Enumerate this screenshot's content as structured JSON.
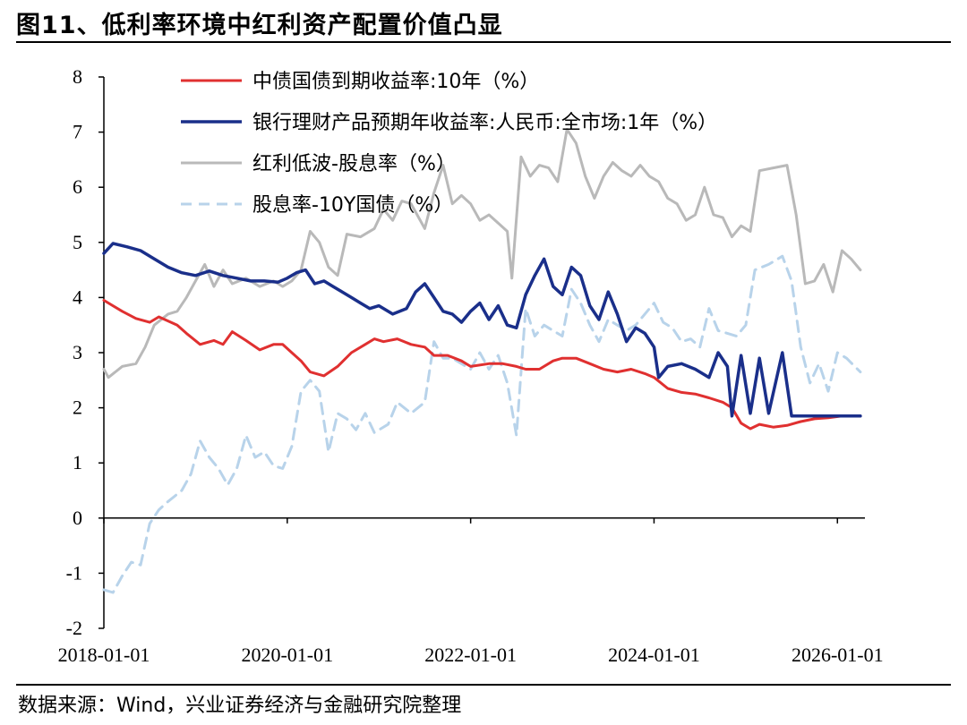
{
  "page": {
    "title": "图11、低利率环境中红利资产配置价值凸显",
    "source": "数据来源：Wind，兴业证券经济与金融研究院整理"
  },
  "chart_data": {
    "type": "line",
    "title": "图11、低利率环境中红利资产配置价值凸显",
    "xlabel": "",
    "ylabel": "",
    "xlim": [
      2018.0,
      2026.3
    ],
    "ylim": [
      -2,
      8
    ],
    "y_ticks": [
      "-2",
      "-1",
      "0",
      "1",
      "2",
      "3",
      "4",
      "5",
      "6",
      "7",
      "8"
    ],
    "x_ticks": [
      {
        "t": 2018.0,
        "label": "2018-01-01"
      },
      {
        "t": 2020.0,
        "label": "2020-01-01"
      },
      {
        "t": 2022.0,
        "label": "2022-01-01"
      },
      {
        "t": 2024.0,
        "label": "2024-01-01"
      },
      {
        "t": 2026.0,
        "label": "2026-01-01"
      }
    ],
    "legend_position": "top-center",
    "series": [
      {
        "name": "中债国债到期收益率:10年（%）",
        "color": "#e03030",
        "style": "solid",
        "width": 3,
        "points": [
          [
            2018.0,
            3.95
          ],
          [
            2018.2,
            3.75
          ],
          [
            2018.35,
            3.62
          ],
          [
            2018.5,
            3.55
          ],
          [
            2018.6,
            3.65
          ],
          [
            2018.8,
            3.5
          ],
          [
            2018.9,
            3.35
          ],
          [
            2019.05,
            3.15
          ],
          [
            2019.2,
            3.22
          ],
          [
            2019.3,
            3.15
          ],
          [
            2019.4,
            3.38
          ],
          [
            2019.55,
            3.22
          ],
          [
            2019.7,
            3.05
          ],
          [
            2019.85,
            3.15
          ],
          [
            2019.95,
            3.15
          ],
          [
            2020.05,
            3.0
          ],
          [
            2020.15,
            2.85
          ],
          [
            2020.25,
            2.65
          ],
          [
            2020.4,
            2.58
          ],
          [
            2020.55,
            2.75
          ],
          [
            2020.7,
            3.0
          ],
          [
            2020.85,
            3.15
          ],
          [
            2020.95,
            3.25
          ],
          [
            2021.05,
            3.2
          ],
          [
            2021.2,
            3.25
          ],
          [
            2021.35,
            3.15
          ],
          [
            2021.5,
            3.1
          ],
          [
            2021.6,
            2.95
          ],
          [
            2021.75,
            2.95
          ],
          [
            2021.9,
            2.85
          ],
          [
            2022.0,
            2.75
          ],
          [
            2022.2,
            2.8
          ],
          [
            2022.35,
            2.8
          ],
          [
            2022.5,
            2.75
          ],
          [
            2022.6,
            2.7
          ],
          [
            2022.75,
            2.7
          ],
          [
            2022.9,
            2.85
          ],
          [
            2023.0,
            2.9
          ],
          [
            2023.15,
            2.9
          ],
          [
            2023.3,
            2.8
          ],
          [
            2023.45,
            2.7
          ],
          [
            2023.6,
            2.65
          ],
          [
            2023.75,
            2.7
          ],
          [
            2023.9,
            2.62
          ],
          [
            2024.0,
            2.55
          ],
          [
            2024.15,
            2.35
          ],
          [
            2024.3,
            2.28
          ],
          [
            2024.45,
            2.25
          ],
          [
            2024.6,
            2.18
          ],
          [
            2024.75,
            2.1
          ],
          [
            2024.85,
            2.0
          ],
          [
            2024.95,
            1.72
          ],
          [
            2025.05,
            1.62
          ],
          [
            2025.15,
            1.7
          ],
          [
            2025.3,
            1.65
          ],
          [
            2025.45,
            1.68
          ],
          [
            2025.6,
            1.75
          ],
          [
            2025.75,
            1.8
          ],
          [
            2025.9,
            1.82
          ],
          [
            2026.05,
            1.85
          ],
          [
            2026.25,
            1.85
          ]
        ]
      },
      {
        "name": "银行理财产品预期年收益率:人民币:全市场:1年（%）",
        "color": "#1a2f8a",
        "style": "solid",
        "width": 3.5,
        "points": [
          [
            2018.0,
            4.8
          ],
          [
            2018.1,
            4.98
          ],
          [
            2018.25,
            4.92
          ],
          [
            2018.4,
            4.85
          ],
          [
            2018.55,
            4.7
          ],
          [
            2018.7,
            4.55
          ],
          [
            2018.85,
            4.45
          ],
          [
            2019.0,
            4.4
          ],
          [
            2019.15,
            4.48
          ],
          [
            2019.3,
            4.4
          ],
          [
            2019.45,
            4.35
          ],
          [
            2019.6,
            4.3
          ],
          [
            2019.75,
            4.3
          ],
          [
            2019.9,
            4.28
          ],
          [
            2020.0,
            4.35
          ],
          [
            2020.1,
            4.45
          ],
          [
            2020.2,
            4.5
          ],
          [
            2020.3,
            4.25
          ],
          [
            2020.4,
            4.3
          ],
          [
            2020.5,
            4.2
          ],
          [
            2020.6,
            4.1
          ],
          [
            2020.7,
            4.0
          ],
          [
            2020.8,
            3.9
          ],
          [
            2020.9,
            3.8
          ],
          [
            2021.0,
            3.85
          ],
          [
            2021.15,
            3.7
          ],
          [
            2021.3,
            3.8
          ],
          [
            2021.4,
            4.1
          ],
          [
            2021.5,
            4.25
          ],
          [
            2021.6,
            4.0
          ],
          [
            2021.7,
            3.75
          ],
          [
            2021.8,
            3.7
          ],
          [
            2021.9,
            3.55
          ],
          [
            2022.0,
            3.75
          ],
          [
            2022.1,
            3.9
          ],
          [
            2022.2,
            3.6
          ],
          [
            2022.3,
            3.85
          ],
          [
            2022.4,
            3.5
          ],
          [
            2022.5,
            3.45
          ],
          [
            2022.6,
            4.05
          ],
          [
            2022.7,
            4.4
          ],
          [
            2022.8,
            4.7
          ],
          [
            2022.9,
            4.2
          ],
          [
            2023.0,
            4.05
          ],
          [
            2023.1,
            4.55
          ],
          [
            2023.2,
            4.4
          ],
          [
            2023.3,
            3.85
          ],
          [
            2023.4,
            3.6
          ],
          [
            2023.5,
            4.1
          ],
          [
            2023.6,
            3.7
          ],
          [
            2023.7,
            3.2
          ],
          [
            2023.8,
            3.45
          ],
          [
            2023.9,
            3.35
          ],
          [
            2024.0,
            3.1
          ],
          [
            2024.05,
            2.55
          ],
          [
            2024.15,
            2.75
          ],
          [
            2024.3,
            2.8
          ],
          [
            2024.45,
            2.7
          ],
          [
            2024.6,
            2.55
          ],
          [
            2024.7,
            3.0
          ],
          [
            2024.8,
            2.75
          ],
          [
            2024.85,
            1.85
          ],
          [
            2024.95,
            2.95
          ],
          [
            2025.05,
            1.9
          ],
          [
            2025.15,
            2.9
          ],
          [
            2025.25,
            1.9
          ],
          [
            2025.4,
            3.0
          ],
          [
            2025.5,
            1.85
          ],
          [
            2025.7,
            1.85
          ],
          [
            2026.25,
            1.85
          ]
        ]
      },
      {
        "name": "红利低波-股息率（%）",
        "color": "#b9b9b9",
        "style": "solid",
        "width": 3,
        "points": [
          [
            2018.0,
            2.7
          ],
          [
            2018.05,
            2.55
          ],
          [
            2018.2,
            2.75
          ],
          [
            2018.35,
            2.8
          ],
          [
            2018.45,
            3.1
          ],
          [
            2018.55,
            3.5
          ],
          [
            2018.7,
            3.7
          ],
          [
            2018.8,
            3.75
          ],
          [
            2018.9,
            4.0
          ],
          [
            2019.0,
            4.3
          ],
          [
            2019.1,
            4.6
          ],
          [
            2019.2,
            4.2
          ],
          [
            2019.3,
            4.5
          ],
          [
            2019.4,
            4.25
          ],
          [
            2019.55,
            4.35
          ],
          [
            2019.7,
            4.2
          ],
          [
            2019.85,
            4.3
          ],
          [
            2019.95,
            4.2
          ],
          [
            2020.05,
            4.3
          ],
          [
            2020.15,
            4.5
          ],
          [
            2020.25,
            5.2
          ],
          [
            2020.35,
            5.0
          ],
          [
            2020.45,
            4.55
          ],
          [
            2020.55,
            4.4
          ],
          [
            2020.65,
            5.15
          ],
          [
            2020.8,
            5.1
          ],
          [
            2020.95,
            5.25
          ],
          [
            2021.05,
            5.6
          ],
          [
            2021.15,
            5.4
          ],
          [
            2021.25,
            5.75
          ],
          [
            2021.35,
            5.7
          ],
          [
            2021.5,
            5.25
          ],
          [
            2021.6,
            5.9
          ],
          [
            2021.7,
            6.4
          ],
          [
            2021.8,
            5.7
          ],
          [
            2021.9,
            5.85
          ],
          [
            2022.0,
            5.7
          ],
          [
            2022.1,
            5.4
          ],
          [
            2022.2,
            5.5
          ],
          [
            2022.3,
            5.35
          ],
          [
            2022.4,
            5.2
          ],
          [
            2022.45,
            4.35
          ],
          [
            2022.55,
            6.55
          ],
          [
            2022.65,
            6.2
          ],
          [
            2022.75,
            6.4
          ],
          [
            2022.85,
            6.35
          ],
          [
            2022.95,
            6.1
          ],
          [
            2023.05,
            7.05
          ],
          [
            2023.15,
            6.8
          ],
          [
            2023.25,
            6.2
          ],
          [
            2023.35,
            5.8
          ],
          [
            2023.45,
            6.2
          ],
          [
            2023.55,
            6.45
          ],
          [
            2023.65,
            6.3
          ],
          [
            2023.75,
            6.2
          ],
          [
            2023.85,
            6.4
          ],
          [
            2023.95,
            6.2
          ],
          [
            2024.05,
            6.1
          ],
          [
            2024.15,
            5.8
          ],
          [
            2024.25,
            5.7
          ],
          [
            2024.35,
            5.4
          ],
          [
            2024.45,
            5.5
          ],
          [
            2024.55,
            6.0
          ],
          [
            2024.65,
            5.5
          ],
          [
            2024.75,
            5.45
          ],
          [
            2024.85,
            5.1
          ],
          [
            2024.95,
            5.3
          ],
          [
            2025.05,
            5.2
          ],
          [
            2025.15,
            6.3
          ],
          [
            2025.3,
            6.35
          ],
          [
            2025.45,
            6.4
          ],
          [
            2025.55,
            5.5
          ],
          [
            2025.65,
            4.25
          ],
          [
            2025.75,
            4.3
          ],
          [
            2025.85,
            4.6
          ],
          [
            2025.95,
            4.1
          ],
          [
            2026.05,
            4.85
          ],
          [
            2026.15,
            4.7
          ],
          [
            2026.25,
            4.5
          ]
        ]
      },
      {
        "name": "股息率-10Y国债（%）",
        "color": "#b8d3ea",
        "style": "dashed",
        "width": 3,
        "points": [
          [
            2018.0,
            -1.3
          ],
          [
            2018.1,
            -1.35
          ],
          [
            2018.2,
            -1.05
          ],
          [
            2018.3,
            -0.8
          ],
          [
            2018.4,
            -0.85
          ],
          [
            2018.5,
            -0.1
          ],
          [
            2018.6,
            0.15
          ],
          [
            2018.7,
            0.3
          ],
          [
            2018.85,
            0.5
          ],
          [
            2018.95,
            0.8
          ],
          [
            2019.05,
            1.4
          ],
          [
            2019.15,
            1.1
          ],
          [
            2019.25,
            0.9
          ],
          [
            2019.35,
            0.6
          ],
          [
            2019.45,
            0.9
          ],
          [
            2019.55,
            1.5
          ],
          [
            2019.65,
            1.1
          ],
          [
            2019.75,
            1.2
          ],
          [
            2019.85,
            0.95
          ],
          [
            2019.95,
            0.9
          ],
          [
            2020.05,
            1.3
          ],
          [
            2020.15,
            2.3
          ],
          [
            2020.25,
            2.5
          ],
          [
            2020.35,
            2.3
          ],
          [
            2020.45,
            1.2
          ],
          [
            2020.55,
            1.9
          ],
          [
            2020.65,
            1.8
          ],
          [
            2020.75,
            1.6
          ],
          [
            2020.85,
            1.9
          ],
          [
            2020.95,
            1.55
          ],
          [
            2021.1,
            1.7
          ],
          [
            2021.2,
            2.1
          ],
          [
            2021.35,
            1.9
          ],
          [
            2021.5,
            2.1
          ],
          [
            2021.6,
            3.2
          ],
          [
            2021.7,
            2.9
          ],
          [
            2021.8,
            2.9
          ],
          [
            2021.9,
            2.8
          ],
          [
            2022.0,
            2.7
          ],
          [
            2022.1,
            3.0
          ],
          [
            2022.2,
            2.7
          ],
          [
            2022.3,
            2.95
          ],
          [
            2022.4,
            2.45
          ],
          [
            2022.5,
            1.5
          ],
          [
            2022.6,
            3.8
          ],
          [
            2022.7,
            3.3
          ],
          [
            2022.8,
            3.5
          ],
          [
            2022.9,
            3.4
          ],
          [
            2023.0,
            3.3
          ],
          [
            2023.1,
            4.15
          ],
          [
            2023.2,
            3.9
          ],
          [
            2023.3,
            3.5
          ],
          [
            2023.4,
            3.2
          ],
          [
            2023.5,
            3.6
          ],
          [
            2023.6,
            3.5
          ],
          [
            2023.7,
            3.4
          ],
          [
            2023.8,
            3.5
          ],
          [
            2023.9,
            3.7
          ],
          [
            2024.0,
            3.9
          ],
          [
            2024.1,
            3.55
          ],
          [
            2024.2,
            3.45
          ],
          [
            2024.3,
            3.2
          ],
          [
            2024.4,
            3.25
          ],
          [
            2024.5,
            3.1
          ],
          [
            2024.6,
            3.8
          ],
          [
            2024.7,
            3.4
          ],
          [
            2024.8,
            3.35
          ],
          [
            2024.9,
            3.3
          ],
          [
            2025.0,
            3.5
          ],
          [
            2025.1,
            4.5
          ],
          [
            2025.25,
            4.6
          ],
          [
            2025.4,
            4.75
          ],
          [
            2025.5,
            4.3
          ],
          [
            2025.6,
            3.1
          ],
          [
            2025.7,
            2.45
          ],
          [
            2025.8,
            2.8
          ],
          [
            2025.9,
            2.3
          ],
          [
            2026.0,
            3.0
          ],
          [
            2026.1,
            2.9
          ],
          [
            2026.25,
            2.65
          ]
        ]
      }
    ]
  }
}
